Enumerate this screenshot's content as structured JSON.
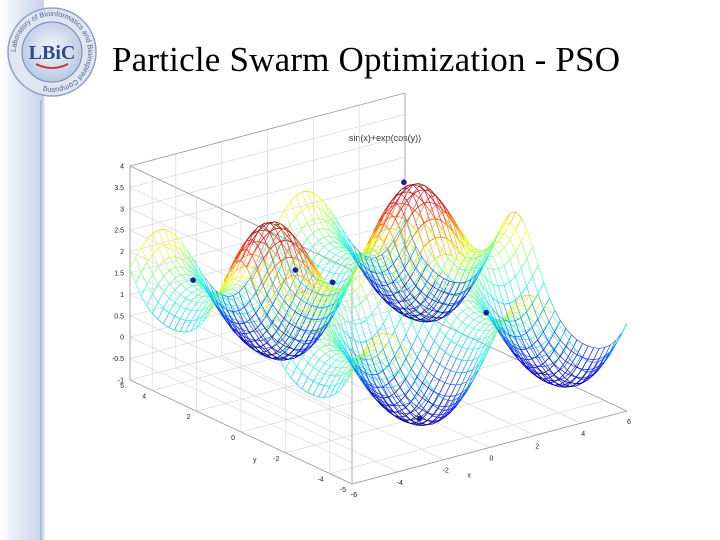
{
  "slide": {
    "title": "Particle Swarm Optimization - PSO",
    "logo": {
      "text": "LBiC",
      "ring_text": "Laboratory of Bioinformatics and Bioinspired Computing",
      "icon": "lbic-logo-icon"
    }
  },
  "chart_data": {
    "type": "surface",
    "title": "sin(x)+exp(cos(y))",
    "xlabel": "x",
    "ylabel": "y",
    "zlabel": "",
    "xlim": [
      -6,
      6
    ],
    "ylim": [
      -5,
      5
    ],
    "zlim": [
      -1,
      4
    ],
    "x_ticks": [
      "-6",
      "-4",
      "-2",
      "0",
      "2",
      "4",
      "6"
    ],
    "y_ticks": [
      "-5",
      "-4",
      "-2",
      "0",
      "2",
      "4",
      "5"
    ],
    "z_ticks": [
      "-1",
      "-0.5",
      "0",
      "0.5",
      "1",
      "1.5",
      "2",
      "2.5",
      "3",
      "3.5",
      "4"
    ],
    "grid": true,
    "colormap": "jet",
    "particles": [
      {
        "x": -4.7,
        "y": 3.5
      },
      {
        "x": -2.0,
        "y": 0.0
      },
      {
        "x": 1.6,
        "y": -3.2
      },
      {
        "x": -4.6,
        "y": -1.0
      },
      {
        "x": -1.5,
        "y": -3.4
      },
      {
        "x": 1.3,
        "y": 0.2
      }
    ],
    "particle_color": "#1a1aa0"
  }
}
